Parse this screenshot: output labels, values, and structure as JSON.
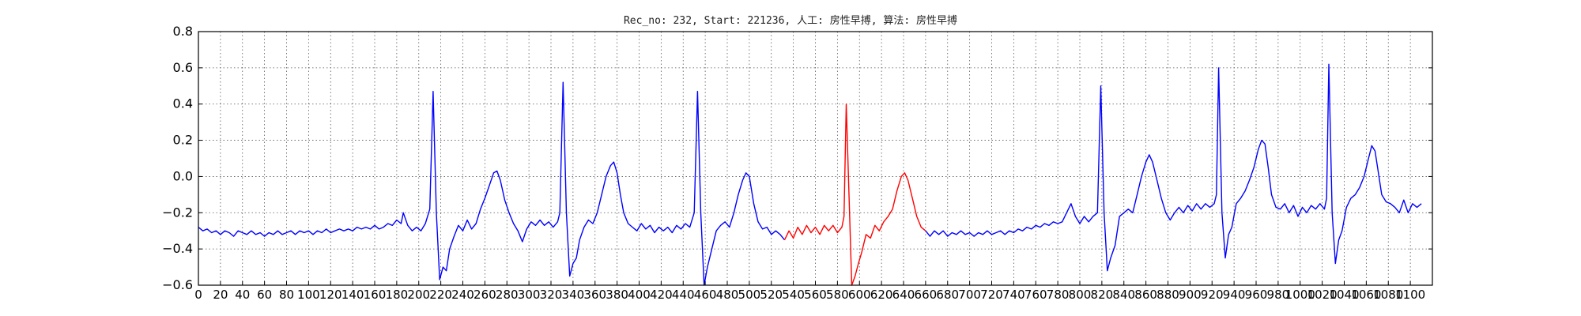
{
  "chart_data": {
    "type": "line",
    "title": "Rec_no: 232, Start: 221236, 人工: 房性早搏, 算法: 房性早搏",
    "xlabel": "",
    "ylabel": "",
    "xlim": [
      0,
      1120
    ],
    "ylim": [
      -0.6,
      0.8
    ],
    "grid": true,
    "yticks": [
      -0.6,
      -0.4,
      -0.2,
      0.0,
      0.2,
      0.4,
      0.6,
      0.8
    ],
    "ytick_labels": [
      "−0.6",
      "−0.4",
      "−0.2",
      "0.0",
      "0.2",
      "0.4",
      "0.6",
      "0.8"
    ],
    "xtick_step": 20,
    "xtick_max": 1100,
    "colors": {
      "normal": "#0000ff",
      "highlight": "#ff0000",
      "grid": "#555555",
      "axis": "#000000"
    },
    "series": [
      {
        "color": "normal",
        "points": [
          [
            0,
            -0.28
          ],
          [
            4,
            -0.3
          ],
          [
            8,
            -0.29
          ],
          [
            12,
            -0.31
          ],
          [
            16,
            -0.3
          ],
          [
            20,
            -0.32
          ],
          [
            24,
            -0.3
          ],
          [
            28,
            -0.31
          ],
          [
            32,
            -0.33
          ],
          [
            36,
            -0.3
          ],
          [
            40,
            -0.31
          ],
          [
            44,
            -0.32
          ],
          [
            48,
            -0.3
          ],
          [
            52,
            -0.32
          ],
          [
            56,
            -0.31
          ],
          [
            60,
            -0.33
          ],
          [
            64,
            -0.31
          ],
          [
            68,
            -0.32
          ],
          [
            72,
            -0.3
          ],
          [
            76,
            -0.32
          ],
          [
            80,
            -0.31
          ],
          [
            84,
            -0.3
          ],
          [
            88,
            -0.32
          ],
          [
            92,
            -0.3
          ],
          [
            96,
            -0.31
          ],
          [
            100,
            -0.3
          ],
          [
            104,
            -0.32
          ],
          [
            108,
            -0.3
          ],
          [
            112,
            -0.31
          ],
          [
            116,
            -0.29
          ],
          [
            120,
            -0.31
          ],
          [
            124,
            -0.3
          ],
          [
            128,
            -0.29
          ],
          [
            132,
            -0.3
          ],
          [
            136,
            -0.29
          ],
          [
            140,
            -0.3
          ],
          [
            144,
            -0.28
          ],
          [
            148,
            -0.29
          ],
          [
            152,
            -0.28
          ],
          [
            156,
            -0.29
          ],
          [
            160,
            -0.27
          ],
          [
            164,
            -0.29
          ],
          [
            168,
            -0.28
          ],
          [
            172,
            -0.26
          ],
          [
            176,
            -0.27
          ],
          [
            180,
            -0.24
          ],
          [
            184,
            -0.26
          ],
          [
            186,
            -0.2
          ],
          [
            190,
            -0.27
          ],
          [
            194,
            -0.3
          ],
          [
            198,
            -0.28
          ],
          [
            202,
            -0.3
          ],
          [
            206,
            -0.26
          ],
          [
            210,
            -0.18
          ],
          [
            213,
            0.47
          ],
          [
            216,
            -0.2
          ],
          [
            219,
            -0.57
          ],
          [
            222,
            -0.5
          ],
          [
            225,
            -0.52
          ],
          [
            228,
            -0.4
          ],
          [
            232,
            -0.33
          ],
          [
            236,
            -0.27
          ],
          [
            240,
            -0.3
          ],
          [
            244,
            -0.24
          ],
          [
            248,
            -0.29
          ],
          [
            252,
            -0.26
          ],
          [
            256,
            -0.18
          ],
          [
            260,
            -0.12
          ],
          [
            264,
            -0.05
          ],
          [
            268,
            0.02
          ],
          [
            271,
            0.03
          ],
          [
            274,
            -0.02
          ],
          [
            278,
            -0.13
          ],
          [
            282,
            -0.2
          ],
          [
            286,
            -0.26
          ],
          [
            290,
            -0.3
          ],
          [
            294,
            -0.36
          ],
          [
            298,
            -0.29
          ],
          [
            302,
            -0.25
          ],
          [
            306,
            -0.27
          ],
          [
            310,
            -0.24
          ],
          [
            314,
            -0.27
          ],
          [
            318,
            -0.25
          ],
          [
            322,
            -0.28
          ],
          [
            326,
            -0.25
          ],
          [
            328,
            -0.2
          ],
          [
            331,
            0.52
          ],
          [
            334,
            -0.2
          ],
          [
            337,
            -0.55
          ],
          [
            340,
            -0.48
          ],
          [
            343,
            -0.45
          ],
          [
            346,
            -0.35
          ],
          [
            350,
            -0.28
          ],
          [
            354,
            -0.24
          ],
          [
            358,
            -0.26
          ],
          [
            362,
            -0.2
          ],
          [
            366,
            -0.1
          ],
          [
            370,
            0.0
          ],
          [
            374,
            0.06
          ],
          [
            377,
            0.08
          ],
          [
            380,
            0.02
          ],
          [
            383,
            -0.1
          ],
          [
            386,
            -0.2
          ],
          [
            390,
            -0.26
          ],
          [
            394,
            -0.28
          ],
          [
            398,
            -0.3
          ],
          [
            402,
            -0.26
          ],
          [
            406,
            -0.29
          ],
          [
            410,
            -0.27
          ],
          [
            414,
            -0.31
          ],
          [
            418,
            -0.28
          ],
          [
            422,
            -0.3
          ],
          [
            426,
            -0.28
          ],
          [
            430,
            -0.31
          ],
          [
            434,
            -0.27
          ],
          [
            438,
            -0.29
          ],
          [
            442,
            -0.26
          ],
          [
            446,
            -0.28
          ],
          [
            450,
            -0.2
          ],
          [
            453,
            0.47
          ],
          [
            456,
            -0.2
          ],
          [
            459,
            -0.6
          ],
          [
            462,
            -0.5
          ],
          [
            466,
            -0.4
          ],
          [
            470,
            -0.3
          ],
          [
            474,
            -0.27
          ],
          [
            478,
            -0.25
          ],
          [
            482,
            -0.28
          ],
          [
            486,
            -0.2
          ],
          [
            490,
            -0.1
          ],
          [
            494,
            -0.02
          ],
          [
            497,
            0.02
          ],
          [
            500,
            0.0
          ],
          [
            504,
            -0.15
          ],
          [
            508,
            -0.25
          ],
          [
            512,
            -0.29
          ],
          [
            516,
            -0.28
          ],
          [
            520,
            -0.32
          ],
          [
            524,
            -0.3
          ],
          [
            528,
            -0.32
          ],
          [
            532,
            -0.35
          ]
        ]
      },
      {
        "color": "highlight",
        "points": [
          [
            532,
            -0.35
          ],
          [
            536,
            -0.3
          ],
          [
            540,
            -0.34
          ],
          [
            544,
            -0.28
          ],
          [
            548,
            -0.32
          ],
          [
            552,
            -0.27
          ],
          [
            556,
            -0.31
          ],
          [
            560,
            -0.28
          ],
          [
            564,
            -0.32
          ],
          [
            568,
            -0.27
          ],
          [
            572,
            -0.3
          ],
          [
            576,
            -0.27
          ],
          [
            580,
            -0.31
          ],
          [
            584,
            -0.28
          ],
          [
            586,
            -0.22
          ],
          [
            588,
            0.4
          ],
          [
            591,
            -0.2
          ],
          [
            593,
            -0.6
          ],
          [
            596,
            -0.55
          ],
          [
            599,
            -0.48
          ],
          [
            602,
            -0.42
          ],
          [
            606,
            -0.32
          ],
          [
            610,
            -0.34
          ],
          [
            614,
            -0.27
          ],
          [
            618,
            -0.3
          ],
          [
            622,
            -0.25
          ],
          [
            626,
            -0.22
          ],
          [
            630,
            -0.18
          ],
          [
            634,
            -0.08
          ],
          [
            638,
            0.0
          ],
          [
            641,
            0.02
          ],
          [
            644,
            -0.02
          ],
          [
            648,
            -0.12
          ],
          [
            652,
            -0.22
          ],
          [
            656,
            -0.28
          ],
          [
            660,
            -0.3
          ]
        ]
      },
      {
        "color": "normal",
        "points": [
          [
            660,
            -0.3
          ],
          [
            664,
            -0.33
          ],
          [
            668,
            -0.3
          ],
          [
            672,
            -0.32
          ],
          [
            676,
            -0.3
          ],
          [
            680,
            -0.33
          ],
          [
            684,
            -0.31
          ],
          [
            688,
            -0.32
          ],
          [
            692,
            -0.3
          ],
          [
            696,
            -0.32
          ],
          [
            700,
            -0.31
          ],
          [
            704,
            -0.33
          ],
          [
            708,
            -0.31
          ],
          [
            712,
            -0.32
          ],
          [
            716,
            -0.3
          ],
          [
            720,
            -0.32
          ],
          [
            724,
            -0.31
          ],
          [
            728,
            -0.3
          ],
          [
            732,
            -0.32
          ],
          [
            736,
            -0.3
          ],
          [
            740,
            -0.31
          ],
          [
            744,
            -0.29
          ],
          [
            748,
            -0.3
          ],
          [
            752,
            -0.28
          ],
          [
            756,
            -0.29
          ],
          [
            760,
            -0.27
          ],
          [
            764,
            -0.28
          ],
          [
            768,
            -0.26
          ],
          [
            772,
            -0.27
          ],
          [
            776,
            -0.25
          ],
          [
            780,
            -0.26
          ],
          [
            784,
            -0.25
          ],
          [
            788,
            -0.2
          ],
          [
            792,
            -0.15
          ],
          [
            796,
            -0.22
          ],
          [
            800,
            -0.26
          ],
          [
            804,
            -0.22
          ],
          [
            808,
            -0.25
          ],
          [
            812,
            -0.22
          ],
          [
            816,
            -0.2
          ],
          [
            819,
            0.5
          ],
          [
            822,
            -0.2
          ],
          [
            825,
            -0.52
          ],
          [
            828,
            -0.45
          ],
          [
            832,
            -0.38
          ],
          [
            836,
            -0.22
          ],
          [
            840,
            -0.2
          ],
          [
            844,
            -0.18
          ],
          [
            848,
            -0.2
          ],
          [
            852,
            -0.1
          ],
          [
            856,
            0.0
          ],
          [
            860,
            0.08
          ],
          [
            863,
            0.12
          ],
          [
            866,
            0.08
          ],
          [
            870,
            -0.02
          ],
          [
            874,
            -0.12
          ],
          [
            878,
            -0.2
          ],
          [
            882,
            -0.24
          ],
          [
            886,
            -0.2
          ],
          [
            890,
            -0.17
          ],
          [
            894,
            -0.2
          ],
          [
            898,
            -0.16
          ],
          [
            902,
            -0.19
          ],
          [
            906,
            -0.15
          ],
          [
            910,
            -0.18
          ],
          [
            914,
            -0.15
          ],
          [
            918,
            -0.17
          ],
          [
            922,
            -0.15
          ],
          [
            924,
            -0.1
          ],
          [
            926,
            0.6
          ],
          [
            929,
            -0.2
          ],
          [
            932,
            -0.45
          ],
          [
            935,
            -0.32
          ],
          [
            938,
            -0.28
          ],
          [
            942,
            -0.15
          ],
          [
            946,
            -0.12
          ],
          [
            950,
            -0.08
          ],
          [
            954,
            -0.02
          ],
          [
            958,
            0.05
          ],
          [
            962,
            0.15
          ],
          [
            965,
            0.2
          ],
          [
            968,
            0.18
          ],
          [
            971,
            0.05
          ],
          [
            974,
            -0.1
          ],
          [
            978,
            -0.17
          ],
          [
            982,
            -0.18
          ],
          [
            986,
            -0.15
          ],
          [
            990,
            -0.2
          ],
          [
            994,
            -0.16
          ],
          [
            998,
            -0.22
          ],
          [
            1002,
            -0.17
          ],
          [
            1006,
            -0.2
          ],
          [
            1010,
            -0.16
          ],
          [
            1014,
            -0.18
          ],
          [
            1018,
            -0.15
          ],
          [
            1022,
            -0.18
          ],
          [
            1024,
            -0.12
          ],
          [
            1026,
            0.62
          ],
          [
            1029,
            -0.2
          ],
          [
            1032,
            -0.48
          ],
          [
            1035,
            -0.35
          ],
          [
            1038,
            -0.3
          ],
          [
            1042,
            -0.17
          ],
          [
            1046,
            -0.12
          ],
          [
            1050,
            -0.1
          ],
          [
            1054,
            -0.06
          ],
          [
            1058,
            0.0
          ],
          [
            1062,
            0.1
          ],
          [
            1065,
            0.17
          ],
          [
            1068,
            0.14
          ],
          [
            1071,
            0.02
          ],
          [
            1074,
            -0.1
          ],
          [
            1078,
            -0.14
          ],
          [
            1082,
            -0.15
          ],
          [
            1086,
            -0.17
          ],
          [
            1090,
            -0.2
          ],
          [
            1094,
            -0.13
          ],
          [
            1098,
            -0.2
          ],
          [
            1102,
            -0.15
          ],
          [
            1106,
            -0.17
          ],
          [
            1110,
            -0.15
          ]
        ]
      }
    ]
  }
}
